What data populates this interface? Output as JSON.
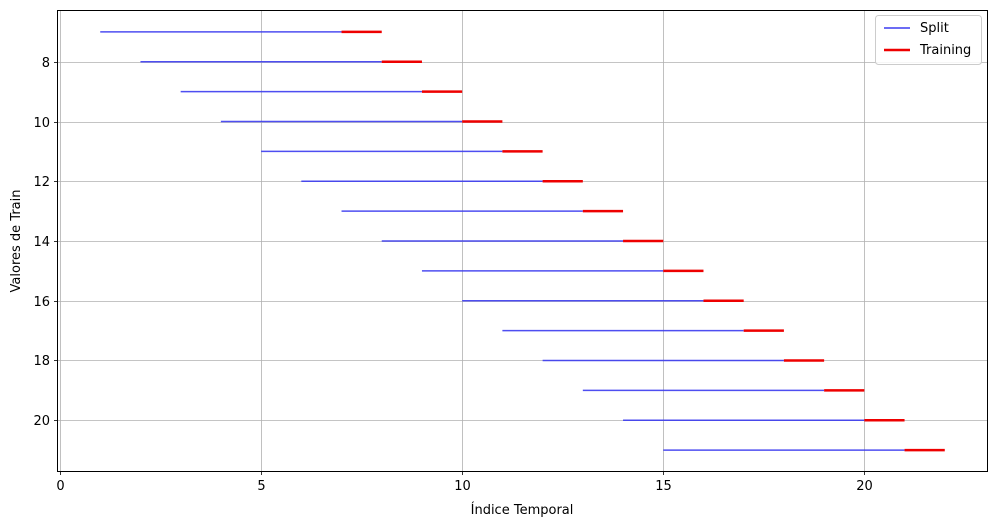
{
  "chart_data": {
    "type": "line",
    "title": "",
    "xlabel": "Índice Temporal",
    "ylabel": "Valores de Train",
    "xlim": [
      -0.05,
      23.05
    ],
    "ylim": [
      21.7,
      6.3
    ],
    "y_inverted": true,
    "xticks": [
      0,
      5,
      10,
      15,
      20
    ],
    "yticks": [
      8,
      10,
      12,
      14,
      16,
      18,
      20
    ],
    "grid": true,
    "legend_position": "top-right",
    "series": [
      {
        "name": "Split",
        "color": "#3b3bf0",
        "segments": [
          {
            "y": 7,
            "x_start": 1,
            "x_end": 7
          },
          {
            "y": 8,
            "x_start": 2,
            "x_end": 8
          },
          {
            "y": 9,
            "x_start": 3,
            "x_end": 9
          },
          {
            "y": 10,
            "x_start": 4,
            "x_end": 10
          },
          {
            "y": 11,
            "x_start": 5,
            "x_end": 11
          },
          {
            "y": 12,
            "x_start": 6,
            "x_end": 12
          },
          {
            "y": 13,
            "x_start": 7,
            "x_end": 13
          },
          {
            "y": 14,
            "x_start": 8,
            "x_end": 14
          },
          {
            "y": 15,
            "x_start": 9,
            "x_end": 15
          },
          {
            "y": 16,
            "x_start": 10,
            "x_end": 16
          },
          {
            "y": 17,
            "x_start": 11,
            "x_end": 17
          },
          {
            "y": 18,
            "x_start": 12,
            "x_end": 18
          },
          {
            "y": 19,
            "x_start": 13,
            "x_end": 19
          },
          {
            "y": 20,
            "x_start": 14,
            "x_end": 20
          },
          {
            "y": 21,
            "x_start": 15,
            "x_end": 21
          }
        ]
      },
      {
        "name": "Training",
        "color": "#ee0000",
        "segments": [
          {
            "y": 7,
            "x_start": 7,
            "x_end": 8
          },
          {
            "y": 8,
            "x_start": 8,
            "x_end": 9
          },
          {
            "y": 9,
            "x_start": 9,
            "x_end": 10
          },
          {
            "y": 10,
            "x_start": 10,
            "x_end": 11
          },
          {
            "y": 11,
            "x_start": 11,
            "x_end": 12
          },
          {
            "y": 12,
            "x_start": 12,
            "x_end": 13
          },
          {
            "y": 13,
            "x_start": 13,
            "x_end": 14
          },
          {
            "y": 14,
            "x_start": 14,
            "x_end": 15
          },
          {
            "y": 15,
            "x_start": 15,
            "x_end": 16
          },
          {
            "y": 16,
            "x_start": 16,
            "x_end": 17
          },
          {
            "y": 17,
            "x_start": 17,
            "x_end": 18
          },
          {
            "y": 18,
            "x_start": 18,
            "x_end": 19
          },
          {
            "y": 19,
            "x_start": 19,
            "x_end": 20
          },
          {
            "y": 20,
            "x_start": 20,
            "x_end": 21
          },
          {
            "y": 21,
            "x_start": 21,
            "x_end": 22
          }
        ]
      }
    ]
  }
}
